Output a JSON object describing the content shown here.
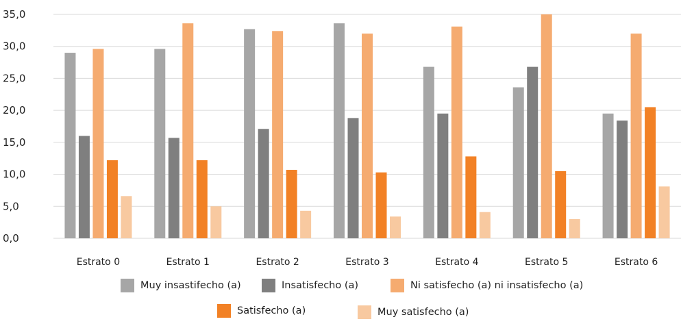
{
  "chart_data": {
    "type": "bar",
    "categories": [
      "Estrato 0",
      "Estrato 1",
      "Estrato 2",
      "Estrato 3",
      "Estrato 4",
      "Estrato 5",
      "Estrato 6"
    ],
    "ylim": [
      0,
      35
    ],
    "yticks": [
      "0,0",
      "5,0",
      "10,0",
      "15,0",
      "20,0",
      "25,0",
      "30,0",
      "35,0"
    ],
    "grid": true,
    "legend_position": "bottom",
    "series": [
      {
        "name": "Muy insastifecho (a)",
        "color": "#a6a6a6",
        "values": [
          29.0,
          29.6,
          32.7,
          33.6,
          26.8,
          23.6,
          19.5
        ]
      },
      {
        "name": "Insatisfecho (a)",
        "color": "#7f7f7f",
        "values": [
          16.0,
          15.7,
          17.1,
          18.8,
          19.5,
          26.8,
          18.4
        ]
      },
      {
        "name": "Ni satisfecho (a)  ni insatisfecho (a)",
        "color": "#f5ab70",
        "values": [
          29.6,
          33.6,
          32.4,
          32.0,
          33.1,
          35.0,
          32.0
        ]
      },
      {
        "name": "Satisfecho (a)",
        "color": "#f28125",
        "values": [
          12.2,
          12.2,
          10.7,
          10.3,
          12.8,
          10.5,
          20.5
        ]
      },
      {
        "name": "Muy satisfecho (a)",
        "color": "#f8c9a0",
        "values": [
          6.6,
          5.0,
          4.3,
          3.4,
          4.1,
          3.0,
          8.1
        ]
      }
    ]
  }
}
